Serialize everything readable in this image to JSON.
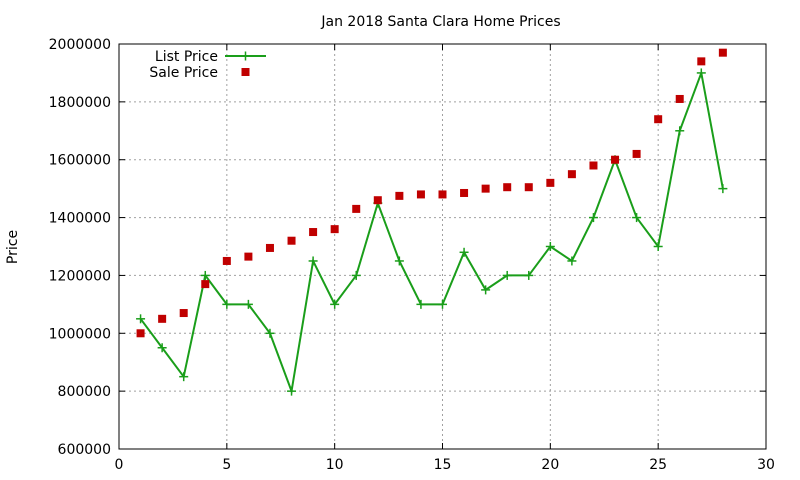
{
  "chart_data": {
    "type": "line",
    "title": "Jan 2018 Santa Clara Home Prices",
    "xlabel": "",
    "ylabel": "Price",
    "xlim": [
      0,
      30
    ],
    "ylim": [
      600000,
      2000000
    ],
    "xticks": [
      0,
      5,
      10,
      15,
      20,
      25,
      30
    ],
    "yticks": [
      600000,
      800000,
      1000000,
      1200000,
      1400000,
      1600000,
      1800000,
      2000000
    ],
    "grid": true,
    "legend_position": "top-left",
    "series": [
      {
        "name": "List Price",
        "style": "line-plus",
        "color": "#1a9e1a",
        "x": [
          1,
          2,
          3,
          4,
          5,
          6,
          7,
          8,
          9,
          10,
          11,
          12,
          13,
          14,
          15,
          16,
          17,
          18,
          19,
          20,
          21,
          22,
          23,
          24,
          25,
          26,
          27,
          28
        ],
        "y": [
          1050000,
          950000,
          850000,
          1200000,
          1100000,
          1100000,
          1000000,
          800000,
          1250000,
          1100000,
          1200000,
          1450000,
          1250000,
          1100000,
          1100000,
          1280000,
          1150000,
          1200000,
          1200000,
          1300000,
          1250000,
          1400000,
          1600000,
          1400000,
          1300000,
          1700000,
          1900000,
          1500000
        ]
      },
      {
        "name": "Sale Price",
        "style": "square-points",
        "color": "#c00000",
        "x": [
          1,
          2,
          3,
          4,
          5,
          6,
          7,
          8,
          9,
          10,
          11,
          12,
          13,
          14,
          15,
          16,
          17,
          18,
          19,
          20,
          21,
          22,
          23,
          24,
          25,
          26,
          27,
          28
        ],
        "y": [
          1000000,
          1050000,
          1070000,
          1170000,
          1250000,
          1265000,
          1295000,
          1320000,
          1350000,
          1360000,
          1430000,
          1460000,
          1475000,
          1480000,
          1480000,
          1485000,
          1500000,
          1505000,
          1505000,
          1520000,
          1550000,
          1580000,
          1600000,
          1620000,
          1740000,
          1810000,
          1940000,
          1970000
        ]
      }
    ]
  }
}
